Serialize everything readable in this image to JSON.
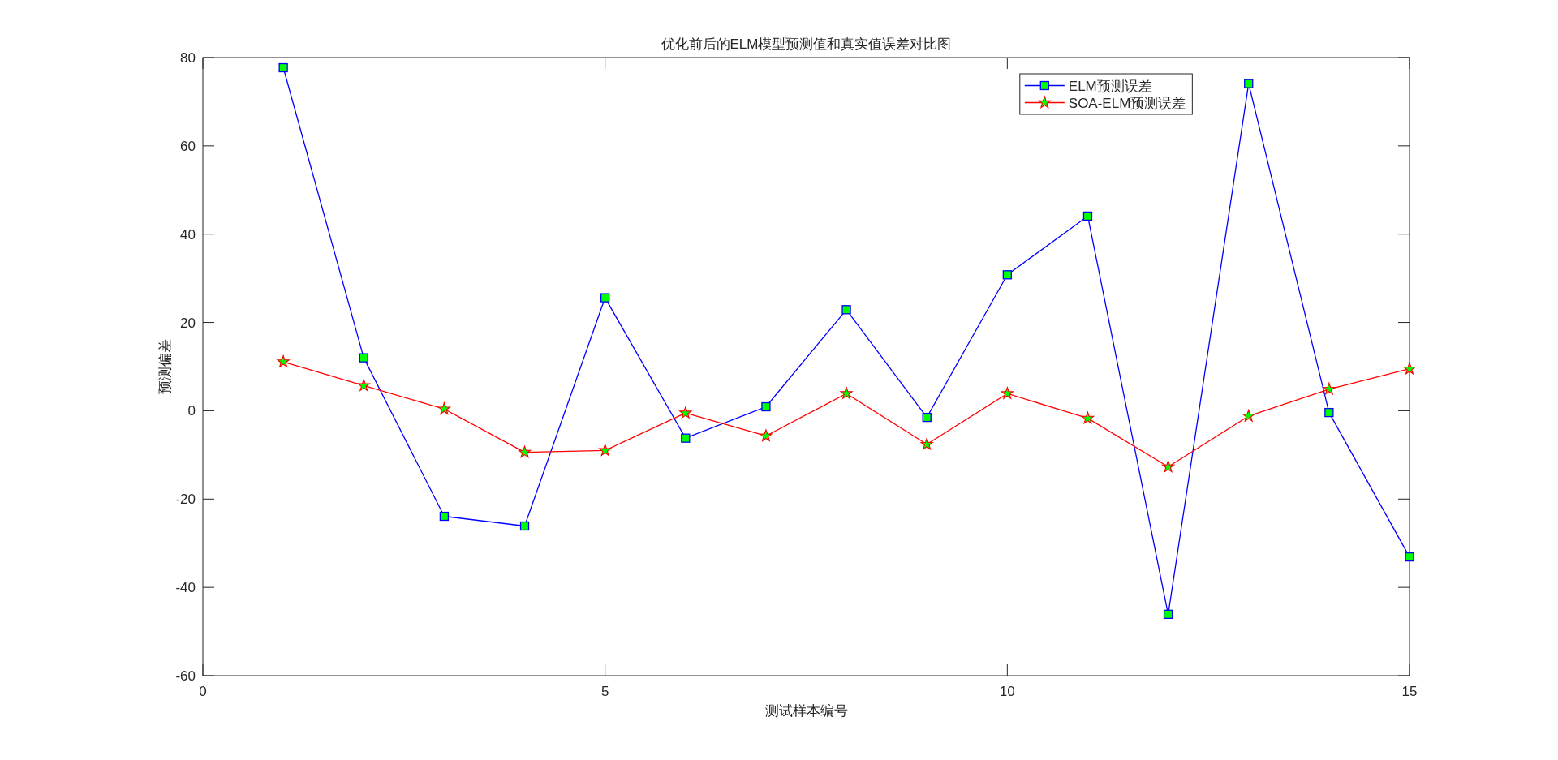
{
  "chart_data": {
    "type": "line",
    "title": "优化前后的ELM模型预测值和真实值误差对比图",
    "xlabel": "测试样本编号",
    "ylabel": "预测偏差",
    "x": [
      1,
      2,
      3,
      4,
      5,
      6,
      7,
      8,
      9,
      10,
      11,
      12,
      13,
      14,
      15
    ],
    "xlim": [
      0,
      15
    ],
    "xticks": [
      0,
      5,
      10,
      15
    ],
    "ylim": [
      -60,
      80
    ],
    "yticks": [
      -60,
      -40,
      -20,
      0,
      20,
      40,
      60,
      80
    ],
    "series": [
      {
        "name": "ELM预测误差",
        "color": "#0000ff",
        "marker": "square",
        "values": [
          77.7,
          12.0,
          -23.9,
          -26.1,
          25.6,
          -6.2,
          0.9,
          22.9,
          -1.5,
          30.8,
          44.1,
          -46.1,
          74.1,
          -0.4,
          -33.1
        ]
      },
      {
        "name": "SOA-ELM预测误差",
        "color": "#ff0000",
        "marker": "star",
        "values": [
          11.1,
          5.7,
          0.4,
          -9.4,
          -9.0,
          -0.5,
          -5.7,
          3.9,
          -7.6,
          3.9,
          -1.7,
          -12.7,
          -1.2,
          4.9,
          9.5
        ]
      }
    ],
    "legend": "top right",
    "line_style": "solid"
  }
}
